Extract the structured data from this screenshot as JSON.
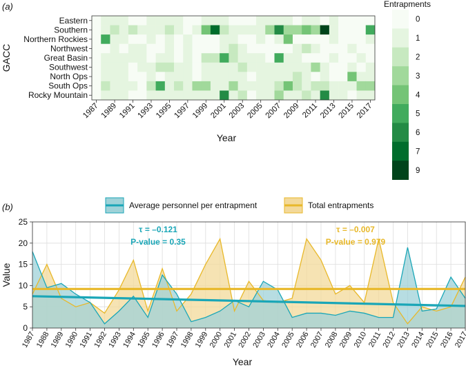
{
  "panel_a_label": "(a)",
  "panel_b_label": "(b)",
  "chart_data": [
    {
      "type": "heatmap",
      "ylabel": "GACC",
      "xlabel": "Year",
      "legend_title": "Entrapments",
      "legend_levels": [
        "0",
        "1",
        "2",
        "3",
        "4",
        "5",
        "6",
        "7",
        "9"
      ],
      "color_scale": [
        "#f7fcf5",
        "#e5f5e0",
        "#c7e9c0",
        "#a1d99b",
        "#74c476",
        "#41ab5d",
        "#238b45",
        "#006d2c",
        "#00441b"
      ],
      "rows": [
        "Eastern",
        "Southern",
        "Northern Rockies",
        "Northwest",
        "Great Basin",
        "Southwest",
        "North Ops",
        "South Ops",
        "Rocky Mountain"
      ],
      "years": [
        1987,
        1988,
        1989,
        1990,
        1991,
        1992,
        1993,
        1994,
        1995,
        1996,
        1997,
        1998,
        1999,
        2000,
        2001,
        2002,
        2003,
        2004,
        2005,
        2006,
        2007,
        2008,
        2009,
        2010,
        2011,
        2012,
        2013,
        2014,
        2015,
        2016,
        2017
      ],
      "x_tick_labels": [
        "1987",
        "1989",
        "1991",
        "1993",
        "1995",
        "1997",
        "1999",
        "2001",
        "2003",
        "2005",
        "2007",
        "2009",
        "2011",
        "2013",
        "2015",
        "2017"
      ],
      "values": [
        [
          0,
          1,
          1,
          1,
          0,
          0,
          1,
          1,
          1,
          1,
          0,
          0,
          1,
          1,
          1,
          0,
          0,
          0,
          1,
          1,
          1,
          1,
          0,
          1,
          1,
          0,
          1,
          0,
          0,
          0,
          0
        ],
        [
          0,
          1,
          2,
          1,
          2,
          1,
          1,
          1,
          2,
          1,
          0,
          1,
          4,
          7,
          2,
          1,
          1,
          1,
          1,
          3,
          6,
          3,
          3,
          4,
          3,
          9,
          1,
          0,
          0,
          0,
          5
        ],
        [
          0,
          5,
          1,
          1,
          0,
          0,
          1,
          0,
          1,
          0,
          1,
          0,
          0,
          0,
          1,
          1,
          0,
          0,
          1,
          0,
          1,
          4,
          0,
          0,
          0,
          0,
          1,
          0,
          0,
          0,
          1
        ],
        [
          0,
          0,
          1,
          0,
          1,
          1,
          0,
          0,
          1,
          0,
          1,
          0,
          0,
          0,
          1,
          2,
          1,
          0,
          0,
          0,
          0,
          0,
          1,
          2,
          1,
          0,
          0,
          0,
          1,
          0,
          0
        ],
        [
          0,
          1,
          1,
          1,
          1,
          1,
          0,
          1,
          1,
          0,
          1,
          0,
          2,
          2,
          5,
          2,
          1,
          1,
          1,
          0,
          5,
          1,
          1,
          0,
          0,
          0,
          1,
          0,
          0,
          1,
          0
        ],
        [
          0,
          1,
          1,
          1,
          0,
          1,
          1,
          2,
          2,
          1,
          1,
          0,
          1,
          1,
          1,
          1,
          2,
          1,
          1,
          1,
          1,
          1,
          1,
          1,
          3,
          1,
          0,
          0,
          1,
          0,
          1
        ],
        [
          0,
          1,
          1,
          1,
          0,
          0,
          1,
          0,
          1,
          1,
          1,
          0,
          1,
          1,
          1,
          1,
          1,
          0,
          1,
          1,
          1,
          1,
          2,
          1,
          0,
          1,
          0,
          0,
          4,
          1,
          1
        ],
        [
          0,
          2,
          1,
          1,
          1,
          0,
          2,
          5,
          1,
          2,
          1,
          3,
          3,
          1,
          1,
          3,
          1,
          1,
          1,
          1,
          2,
          4,
          2,
          1,
          2,
          2,
          1,
          1,
          1,
          3,
          3
        ],
        [
          0,
          1,
          1,
          1,
          0,
          0,
          1,
          1,
          1,
          1,
          1,
          1,
          1,
          1,
          6,
          1,
          2,
          0,
          1,
          1,
          3,
          1,
          1,
          2,
          1,
          6,
          1,
          1,
          0,
          1,
          1
        ]
      ]
    },
    {
      "type": "area",
      "xlabel": "Year",
      "ylabel": "Value",
      "ylim": [
        0,
        25
      ],
      "y_ticks": [
        0,
        5,
        10,
        15,
        20,
        25
      ],
      "x": [
        1987,
        1988,
        1989,
        1990,
        1991,
        1992,
        1993,
        1994,
        1995,
        1996,
        1997,
        1998,
        1999,
        2000,
        2001,
        2002,
        2003,
        2004,
        2005,
        2006,
        2007,
        2008,
        2009,
        2010,
        2011,
        2012,
        2013,
        2014,
        2015,
        2016,
        2017
      ],
      "grid": true,
      "legend_placement": "top-center",
      "series": [
        {
          "name": "Average personnel per entrapment",
          "color": "#1aa6b7",
          "fill": "#9fd2d8",
          "values": [
            18,
            9.5,
            10.5,
            8,
            6,
            1,
            4,
            7.5,
            2.5,
            12.5,
            8,
            1.5,
            2.5,
            4,
            6.5,
            5,
            11,
            9,
            2.5,
            3.5,
            3.5,
            3,
            4,
            3.5,
            2.5,
            2.5,
            19,
            4,
            4.5,
            12,
            7
          ],
          "trend": {
            "start": 7.5,
            "end": 5.2
          },
          "annotation_tau": "τ = –0.121",
          "annotation_p": "P-value = 0.35"
        },
        {
          "name": "Total entrapments",
          "color": "#e8b829",
          "fill": "#f3d99a",
          "values": [
            8,
            15,
            7,
            5,
            6,
            3.5,
            9,
            16,
            4,
            14,
            4,
            8,
            15,
            21,
            4,
            11,
            6.5,
            6,
            7,
            21,
            16,
            8,
            10,
            6,
            21,
            6,
            1,
            5,
            4,
            5,
            12
          ],
          "trend": {
            "start": 9.2,
            "end": 9.2
          },
          "annotation_tau": "τ = –0.007",
          "annotation_p": "P-value = 0.979"
        }
      ]
    }
  ]
}
